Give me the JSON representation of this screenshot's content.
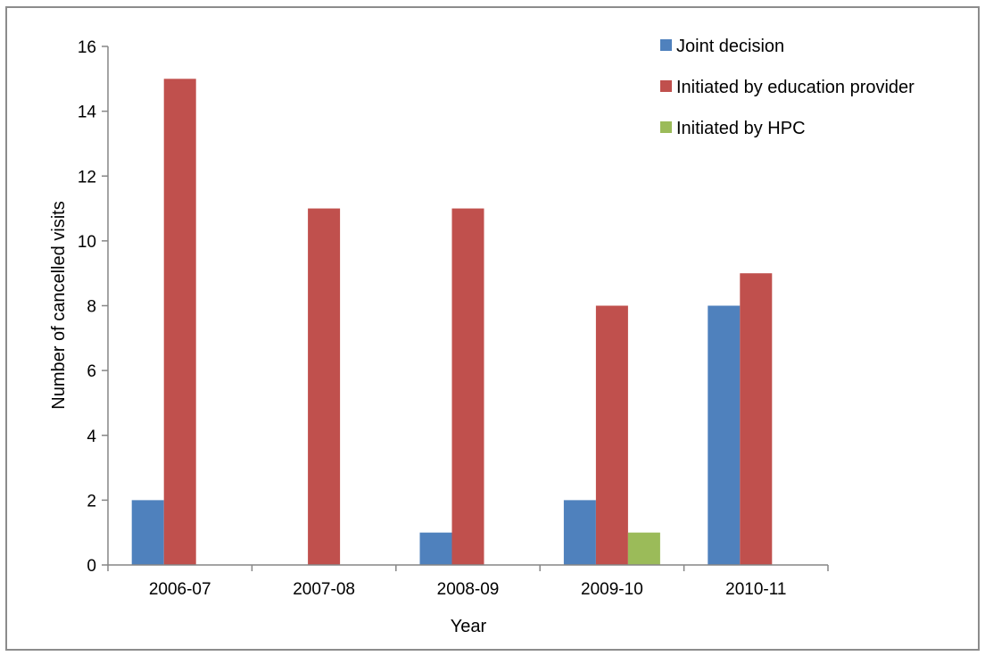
{
  "chart_data": {
    "type": "bar",
    "title": "",
    "xlabel": "Year",
    "ylabel": "Number of cancelled visits",
    "categories": [
      "2006-07",
      "2007-08",
      "2008-09",
      "2009-10",
      "2010-11"
    ],
    "series": [
      {
        "name": "Joint decision",
        "color": "#4F81BD",
        "values": [
          2,
          0,
          1,
          2,
          8
        ]
      },
      {
        "name": "Initiated by education provider",
        "color": "#C0504D",
        "values": [
          15,
          11,
          11,
          8,
          9
        ]
      },
      {
        "name": "Initiated by HPC",
        "color": "#9BBB59",
        "values": [
          0,
          0,
          0,
          1,
          0
        ]
      }
    ],
    "ylim": [
      0,
      16
    ],
    "yticks": [
      0,
      2,
      4,
      6,
      8,
      10,
      12,
      14,
      16
    ],
    "grid": false,
    "legend_position": "top-right"
  }
}
